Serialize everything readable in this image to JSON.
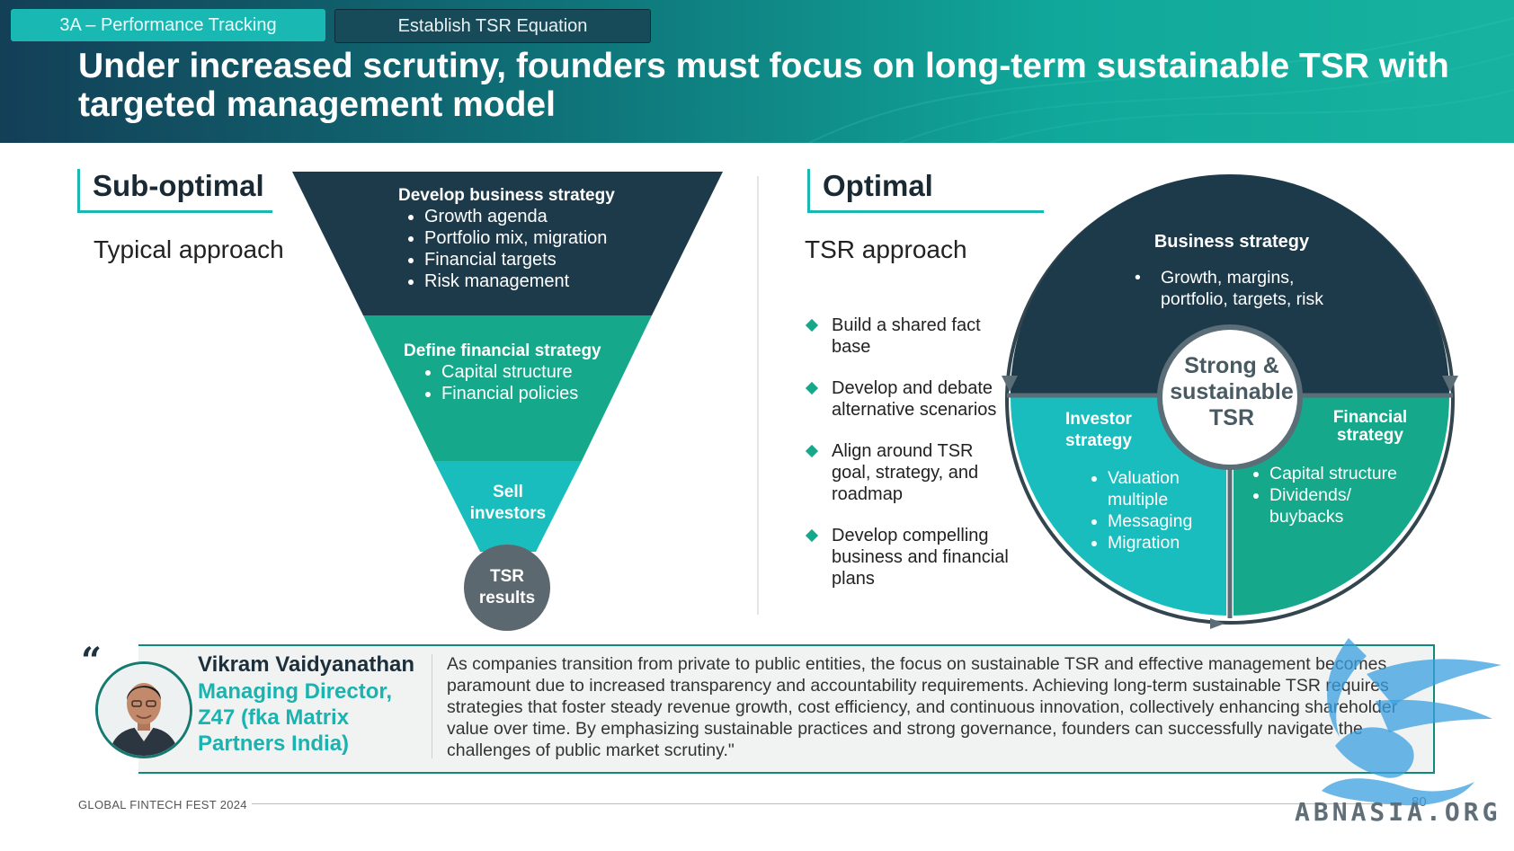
{
  "header": {
    "tab_active": "3A – Performance Tracking",
    "tab_inactive": "Establish TSR Equation",
    "title": "Under increased scrutiny, founders must focus on long-term sustainable TSR with targeted management model"
  },
  "suboptimal": {
    "heading": "Sub-optimal",
    "subheading": "Typical approach",
    "funnel": {
      "level1": {
        "title": "Develop business strategy",
        "items": [
          "Growth agenda",
          "Portfolio mix, migration",
          "Financial targets",
          "Risk management"
        ]
      },
      "level2": {
        "title": "Define financial strategy",
        "items": [
          "Capital structure",
          "Financial policies"
        ]
      },
      "level3": {
        "title_line1": "Sell",
        "title_line2": "investors"
      },
      "result": {
        "line1": "TSR",
        "line2": "results"
      }
    }
  },
  "optimal": {
    "heading": "Optimal",
    "subheading": "TSR approach",
    "steps": [
      "Build a shared fact base",
      "Develop and debate alternative scenarios",
      "Align around TSR goal, strategy, and roadmap",
      "Develop compelling business and financial plans"
    ],
    "circle": {
      "business": {
        "title": "Business strategy",
        "item_line1": "Growth, margins,",
        "item_line2": "portfolio, targets, risk"
      },
      "investor": {
        "title_line1": "Investor",
        "title_line2": "strategy",
        "items": [
          "Valuation multiple",
          "Messaging",
          "Migration"
        ]
      },
      "financial": {
        "title_line1": "Financial",
        "title_line2": "strategy",
        "items": [
          "Capital structure",
          "Dividends/ buybacks"
        ]
      },
      "center": {
        "line1": "Strong &",
        "line2": "sustainable",
        "line3": "TSR"
      }
    }
  },
  "quote": {
    "mark": "“",
    "name": "Vikram Vaidyanathan",
    "role": "Managing Director, Z47 (fka Matrix Partners India)",
    "text": "As companies transition from private to public entities, the focus on sustainable TSR and effective management becomes paramount due to increased transparency and accountability requirements. Achieving long-term sustainable TSR requires strategies that foster steady revenue growth, cost efficiency, and continuous innovation, collectively enhancing shareholder value over time. By emphasizing sustainable practices and strong governance, founders can successfully navigate the challenges of public market scrutiny.\""
  },
  "footer": {
    "event": "GLOBAL FINTECH FEST 2024",
    "page": "80",
    "watermark": "ABNASIA.ORG"
  },
  "colors": {
    "dark_navy": "#1d3a4b",
    "green": "#16a88a",
    "teal": "#16b9b9",
    "grey_circle": "#5c6870"
  }
}
